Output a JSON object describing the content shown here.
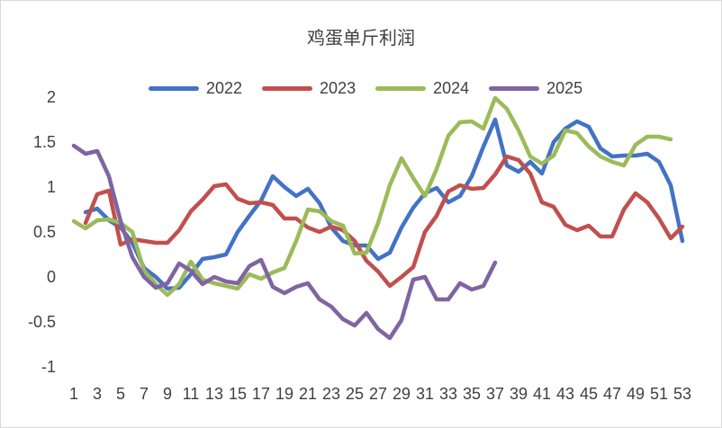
{
  "chart_data": {
    "type": "line",
    "title": "鸡蛋单斤利润",
    "xlabel": "",
    "ylabel": "",
    "ylim": [
      -1,
      2
    ],
    "y_ticks": [
      2,
      1.5,
      1,
      0.5,
      0,
      -0.5,
      -1
    ],
    "y_tick_labels": [
      "2",
      "1.5",
      "1",
      "0.5",
      "0",
      "-0.5",
      "-1"
    ],
    "x_ticks": [
      1,
      3,
      5,
      7,
      9,
      11,
      13,
      15,
      17,
      19,
      21,
      23,
      25,
      27,
      29,
      31,
      33,
      35,
      37,
      39,
      41,
      43,
      45,
      47,
      49,
      51,
      53
    ],
    "x_tick_labels": [
      "1",
      "3",
      "5",
      "7",
      "9",
      "11",
      "13",
      "15",
      "17",
      "19",
      "21",
      "23",
      "25",
      "27",
      "29",
      "31",
      "33",
      "35",
      "37",
      "39",
      "41",
      "43",
      "45",
      "47",
      "49",
      "51",
      "53"
    ],
    "grid": false,
    "legend_position": "top",
    "series": [
      {
        "name": "2022",
        "color": "#4472c4",
        "x": [
          2,
          3,
          4,
          5,
          6,
          7,
          8,
          9,
          10,
          11,
          12,
          13,
          14,
          15,
          16,
          17,
          18,
          19,
          20,
          21,
          22,
          23,
          24,
          25,
          26,
          27,
          28,
          29,
          30,
          31,
          32,
          33,
          34,
          35,
          36,
          37,
          38,
          39,
          40,
          41,
          42,
          43,
          44,
          45,
          46,
          47,
          48,
          49,
          50,
          51,
          52,
          53
        ],
        "values": [
          0.72,
          0.76,
          0.63,
          0.55,
          0.38,
          0.1,
          0.0,
          -0.13,
          -0.12,
          0.03,
          0.2,
          0.22,
          0.25,
          0.5,
          0.68,
          0.85,
          1.12,
          1.0,
          0.9,
          0.98,
          0.82,
          0.55,
          0.4,
          0.35,
          0.35,
          0.2,
          0.27,
          0.55,
          0.77,
          0.93,
          0.99,
          0.83,
          0.9,
          1.12,
          1.45,
          1.75,
          1.24,
          1.17,
          1.28,
          1.15,
          1.5,
          1.65,
          1.73,
          1.67,
          1.43,
          1.34,
          1.35,
          1.35,
          1.37,
          1.28,
          1.02,
          0.4
        ]
      },
      {
        "name": "2023",
        "color": "#c0504d",
        "x": [
          2,
          3,
          4,
          5,
          6,
          7,
          8,
          9,
          10,
          11,
          12,
          13,
          14,
          15,
          16,
          17,
          18,
          19,
          20,
          21,
          22,
          23,
          24,
          25,
          26,
          27,
          28,
          29,
          30,
          31,
          32,
          33,
          34,
          35,
          36,
          37,
          38,
          39,
          40,
          41,
          42,
          43,
          44,
          45,
          46,
          47,
          48,
          49,
          50,
          51,
          52,
          53
        ],
        "values": [
          0.6,
          0.92,
          0.96,
          0.36,
          0.42,
          0.4,
          0.38,
          0.38,
          0.52,
          0.73,
          0.86,
          1.01,
          1.03,
          0.87,
          0.82,
          0.83,
          0.8,
          0.65,
          0.65,
          0.55,
          0.5,
          0.56,
          0.52,
          0.4,
          0.18,
          0.06,
          -0.1,
          0.0,
          0.11,
          0.5,
          0.68,
          0.95,
          1.02,
          0.98,
          0.99,
          1.14,
          1.34,
          1.3,
          1.15,
          0.83,
          0.78,
          0.58,
          0.52,
          0.57,
          0.45,
          0.45,
          0.75,
          0.93,
          0.83,
          0.65,
          0.43,
          0.56
        ]
      },
      {
        "name": "2024",
        "color": "#9bbb59",
        "x": [
          1,
          2,
          3,
          4,
          5,
          6,
          7,
          8,
          9,
          10,
          11,
          12,
          13,
          14,
          15,
          16,
          17,
          18,
          19,
          20,
          21,
          22,
          23,
          24,
          25,
          26,
          27,
          28,
          29,
          30,
          31,
          32,
          33,
          34,
          35,
          36,
          37,
          38,
          39,
          40,
          41,
          42,
          43,
          44,
          45,
          46,
          47,
          48,
          49,
          50,
          51,
          52
        ],
        "values": [
          0.62,
          0.54,
          0.63,
          0.64,
          0.6,
          0.5,
          0.07,
          -0.08,
          -0.2,
          -0.08,
          0.17,
          -0.03,
          -0.07,
          -0.1,
          -0.13,
          0.03,
          -0.02,
          0.05,
          0.1,
          0.4,
          0.75,
          0.73,
          0.62,
          0.57,
          0.26,
          0.27,
          0.6,
          1.02,
          1.32,
          1.1,
          0.9,
          1.2,
          1.57,
          1.72,
          1.73,
          1.65,
          1.99,
          1.87,
          1.63,
          1.34,
          1.26,
          1.35,
          1.63,
          1.6,
          1.45,
          1.34,
          1.28,
          1.24,
          1.47,
          1.56,
          1.56,
          1.53
        ]
      },
      {
        "name": "2025",
        "color": "#8064a2",
        "x": [
          1,
          2,
          3,
          4,
          5,
          6,
          7,
          8,
          9,
          10,
          11,
          12,
          13,
          14,
          15,
          16,
          17,
          18,
          19,
          20,
          21,
          22,
          23,
          24,
          25,
          26,
          27,
          28,
          29,
          30,
          31,
          32,
          33,
          34,
          35,
          36,
          37
        ],
        "values": [
          1.46,
          1.37,
          1.4,
          1.12,
          0.62,
          0.22,
          0.0,
          -0.12,
          -0.07,
          0.15,
          0.07,
          -0.08,
          0.0,
          -0.05,
          -0.07,
          0.12,
          0.19,
          -0.11,
          -0.18,
          -0.11,
          -0.07,
          -0.25,
          -0.33,
          -0.47,
          -0.54,
          -0.4,
          -0.58,
          -0.68,
          -0.48,
          -0.03,
          0.0,
          -0.25,
          -0.25,
          -0.07,
          -0.14,
          -0.1,
          0.16
        ]
      }
    ]
  }
}
